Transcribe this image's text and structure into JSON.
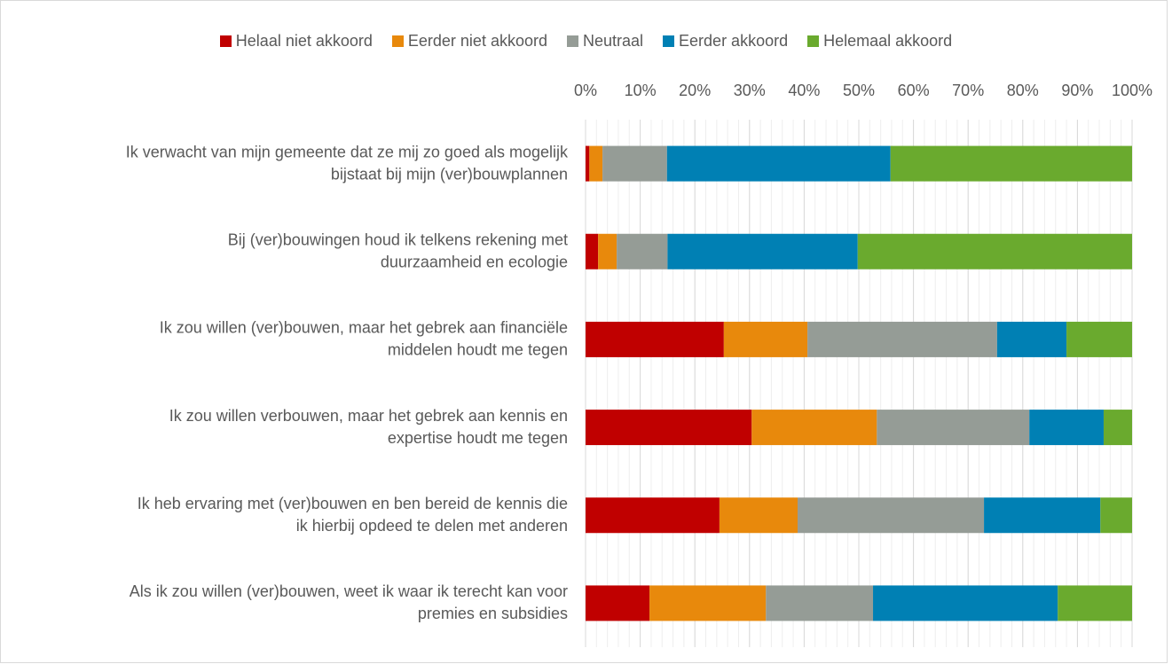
{
  "chart_data": {
    "type": "stacked_barh",
    "categories": [
      [
        "Ik verwacht van mijn gemeente dat ze mij zo goed als mogelijk",
        "bijstaat bij mijn (ver)bouwplannen"
      ],
      [
        "Bij (ver)bouwingen houd ik telkens rekening met",
        "duurzaamheid en ecologie"
      ],
      [
        "Ik zou willen (ver)bouwen, maar het gebrek aan financiële",
        "middelen houdt me tegen"
      ],
      [
        "Ik zou willen verbouwen, maar het gebrek aan kennis en",
        "expertise houdt me tegen"
      ],
      [
        "Ik heb ervaring met (ver)bouwen en ben bereid de kennis die",
        "ik hierbij opdeed te delen met anderen"
      ],
      [
        "Als ik zou willen (ver)bouwen, weet ik waar ik terecht kan voor",
        "premies en subsidies"
      ]
    ],
    "series": [
      {
        "name": "Helaal niet akkoord",
        "color": "#c00000",
        "values": [
          0.7,
          2.3,
          25.3,
          30.4,
          24.5,
          11.7
        ]
      },
      {
        "name": "Eerder niet akkoord",
        "color": "#e8890c",
        "values": [
          2.4,
          3.4,
          15.3,
          22.9,
          14.3,
          21.3
        ]
      },
      {
        "name": "Neutraal",
        "color": "#959c96",
        "values": [
          11.8,
          9.3,
          34.7,
          27.9,
          34.1,
          19.6
        ]
      },
      {
        "name": "Eerder akkoord",
        "color": "#0080b4",
        "values": [
          40.9,
          34.8,
          12.7,
          13.6,
          21.3,
          33.8
        ]
      },
      {
        "name": "Helemaal akkoord",
        "color": "#6aaa2e",
        "values": [
          44.2,
          50.2,
          12.0,
          5.2,
          5.8,
          13.6
        ]
      }
    ],
    "xlim": [
      0,
      100
    ],
    "xticks": [
      {
        "value": 0,
        "label": "0%"
      },
      {
        "value": 10,
        "label": "10%"
      },
      {
        "value": 20,
        "label": "20%"
      },
      {
        "value": 30,
        "label": "30%"
      },
      {
        "value": 40,
        "label": "40%"
      },
      {
        "value": 50,
        "label": "50%"
      },
      {
        "value": 60,
        "label": "60%"
      },
      {
        "value": 70,
        "label": "70%"
      },
      {
        "value": 80,
        "label": "80%"
      },
      {
        "value": 90,
        "label": "90%"
      },
      {
        "value": 100,
        "label": "100%"
      }
    ],
    "grid": true,
    "legend": "top"
  }
}
